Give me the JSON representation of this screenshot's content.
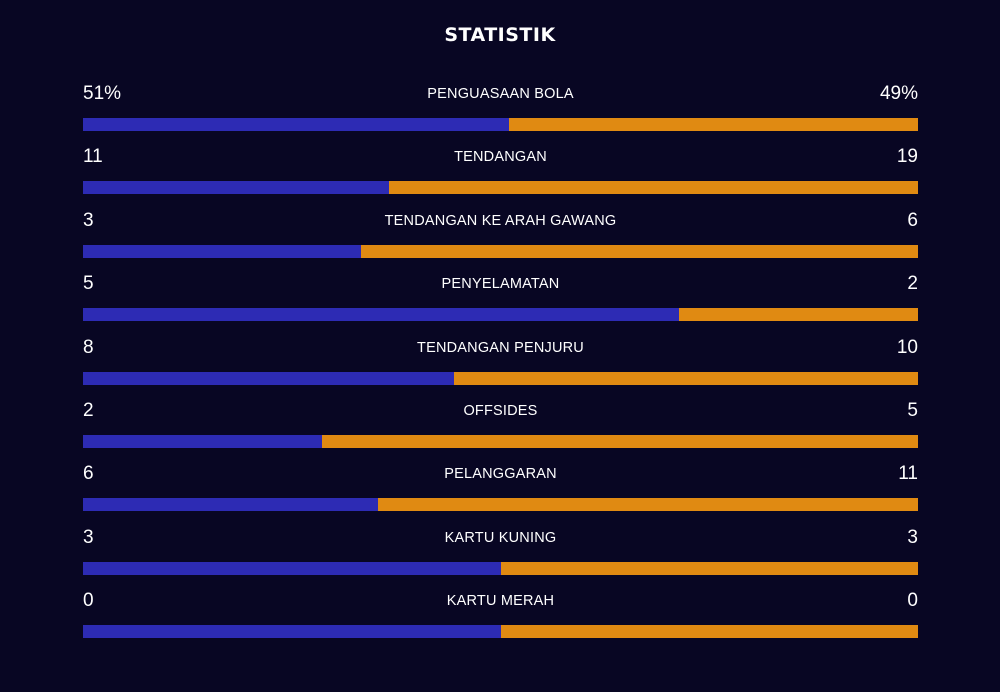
{
  "title": "STATISTIK",
  "colors": {
    "background": "#080623",
    "home": "#2d2bb4",
    "away": "#e08a12",
    "text": "#ffffff"
  },
  "chart_data": {
    "type": "bar",
    "title": "STATISTIK",
    "orientation": "horizontal-stacked-split",
    "categories": [
      "PENGUASAAN BOLA",
      "TENDANGAN",
      "TENDANGAN KE ARAH GAWANG",
      "PENYELAMATAN",
      "TENDANGAN PENJURU",
      "OFFSIDES",
      "PELANGGARAN",
      "KARTU KUNING",
      "KARTU MERAH"
    ],
    "series": [
      {
        "values": [
          51,
          11,
          3,
          5,
          8,
          2,
          6,
          3,
          0
        ]
      },
      {
        "values": [
          49,
          19,
          6,
          2,
          10,
          5,
          11,
          3,
          0
        ]
      }
    ],
    "rows": [
      {
        "label": "PENGUASAAN BOLA",
        "left_display": "51%",
        "right_display": "49%",
        "left": 51,
        "right": 49
      },
      {
        "label": "TENDANGAN",
        "left_display": "11",
        "right_display": "19",
        "left": 11,
        "right": 19
      },
      {
        "label": "TENDANGAN KE ARAH GAWANG",
        "left_display": "3",
        "right_display": "6",
        "left": 3,
        "right": 6
      },
      {
        "label": "PENYELAMATAN",
        "left_display": "5",
        "right_display": "2",
        "left": 5,
        "right": 2
      },
      {
        "label": "TENDANGAN PENJURU",
        "left_display": "8",
        "right_display": "10",
        "left": 8,
        "right": 10
      },
      {
        "label": "OFFSIDES",
        "left_display": "2",
        "right_display": "5",
        "left": 2,
        "right": 5
      },
      {
        "label": "PELANGGARAN",
        "left_display": "6",
        "right_display": "11",
        "left": 6,
        "right": 11
      },
      {
        "label": "KARTU KUNING",
        "left_display": "3",
        "right_display": "3",
        "left": 3,
        "right": 3
      },
      {
        "label": "KARTU MERAH",
        "left_display": "0",
        "right_display": "0",
        "left": 0,
        "right": 0
      }
    ]
  }
}
